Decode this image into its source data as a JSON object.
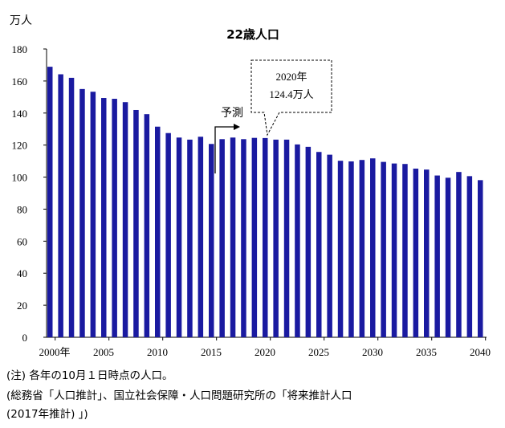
{
  "chart_data": {
    "type": "bar",
    "title": "22歳人口",
    "ylabel": "万人",
    "ylim": [
      0,
      180
    ],
    "yticks": [
      0,
      20,
      40,
      60,
      80,
      100,
      120,
      140,
      160,
      180
    ],
    "xtick_labels": [
      "2000年",
      "2005",
      "2010",
      "2015",
      "2020",
      "2025",
      "2030",
      "2035",
      "2040"
    ],
    "categories": [
      2000,
      2001,
      2002,
      2003,
      2004,
      2005,
      2006,
      2007,
      2008,
      2009,
      2010,
      2011,
      2012,
      2013,
      2014,
      2015,
      2016,
      2017,
      2018,
      2019,
      2020,
      2021,
      2022,
      2023,
      2024,
      2025,
      2026,
      2027,
      2028,
      2029,
      2030,
      2031,
      2032,
      2033,
      2034,
      2035,
      2036,
      2037,
      2038,
      2039,
      2040
    ],
    "values": [
      168.9,
      164.2,
      162.0,
      155.0,
      153.3,
      149.4,
      148.9,
      146.8,
      141.9,
      139.3,
      131.5,
      127.5,
      124.7,
      123.4,
      125.2,
      120.7,
      123.7,
      124.7,
      123.7,
      124.5,
      124.4,
      123.4,
      123.4,
      120.4,
      118.9,
      115.7,
      114.0,
      110.2,
      109.8,
      110.7,
      111.7,
      109.5,
      108.5,
      108.2,
      105.3,
      104.7,
      101.0,
      99.6,
      103.2,
      100.6,
      98.1
    ],
    "bar_color": "#1a1aa0",
    "forecast_label": "予測",
    "callout": {
      "line1": "2020年",
      "line2": "124.4万人"
    },
    "grid": false
  },
  "notes": [
    "(注) 各年の10月１日時点の人口。",
    "(総務省「人口推計」、国立社会保障・人口問題研究所の「将来推計人口",
    "(2017年推計) 」)"
  ]
}
